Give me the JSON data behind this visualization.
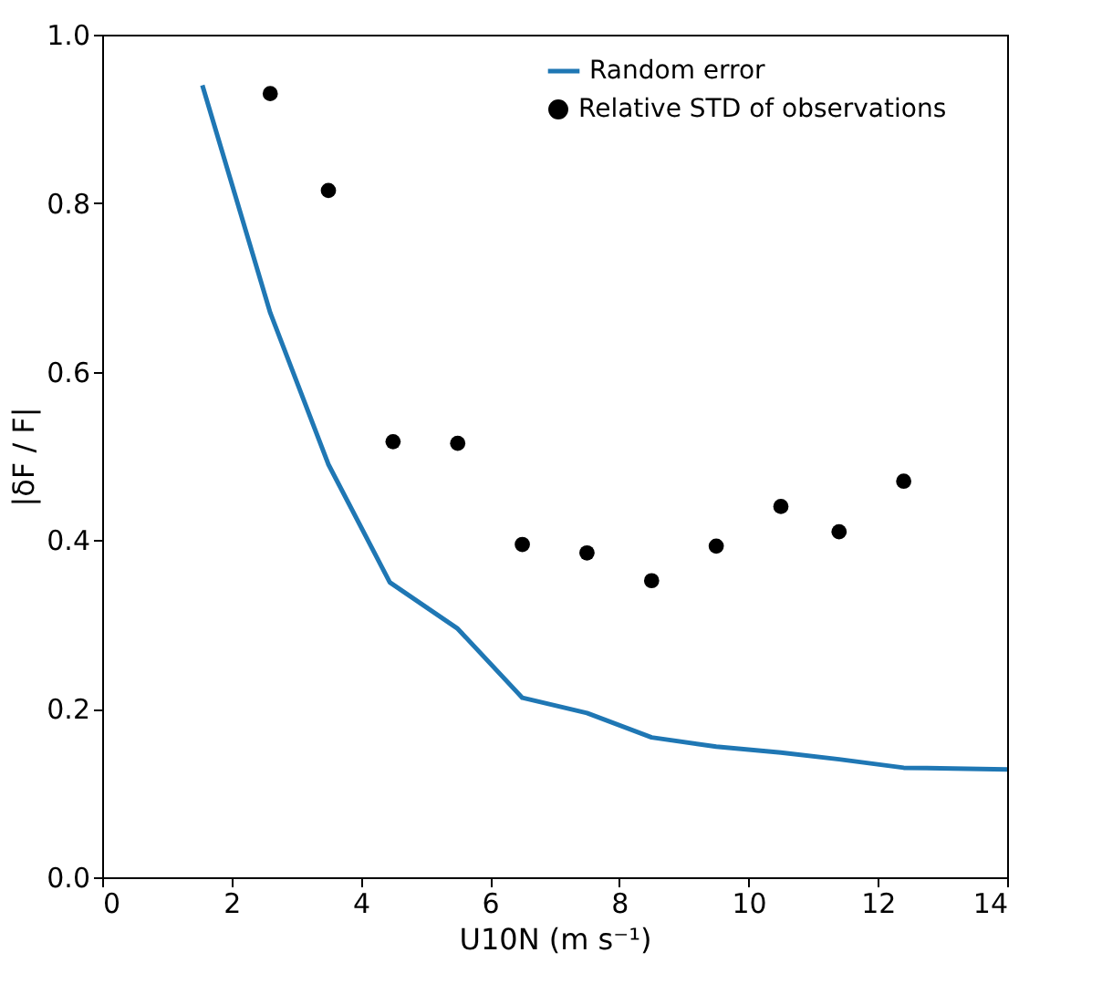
{
  "chart_data": {
    "type": "line",
    "xlabel": "U10N (m s⁻¹)",
    "ylabel": "|δF / F|",
    "xlim": [
      0,
      14
    ],
    "ylim": [
      0,
      1
    ],
    "xticks": [
      0,
      2,
      4,
      6,
      8,
      10,
      12,
      14
    ],
    "yticks": [
      {
        "value": 0,
        "label": "0.0"
      },
      0.2,
      0.4,
      0.6,
      0.8,
      {
        "value": 1,
        "label": "1.0"
      }
    ],
    "grid": false,
    "legend": "top right",
    "series": [
      {
        "name": "Random error",
        "color": "#1f77b4",
        "marker": "none",
        "line_style": "solid",
        "x": [
          1.55,
          2.6,
          3.5,
          4.45,
          5.5,
          6.5,
          7.5,
          8.5,
          9.5,
          10.5,
          11.4,
          12.4,
          14
        ],
        "values": [
          0.94,
          0.67,
          0.49,
          0.35,
          0.295,
          0.213,
          0.195,
          0.166,
          0.155,
          0.148,
          0.14,
          0.13,
          0.128
        ]
      },
      {
        "name": "Relative STD of observations",
        "type": "scatter",
        "color": "#000000",
        "marker": "circle",
        "x": [
          2.6,
          3.5,
          4.5,
          5.5,
          6.5,
          7.5,
          8.5,
          9.5,
          10.5,
          11.4,
          12.4
        ],
        "values": [
          0.93,
          0.815,
          0.517,
          0.515,
          0.395,
          0.385,
          0.352,
          0.393,
          0.44,
          0.41,
          0.47
        ]
      }
    ]
  }
}
